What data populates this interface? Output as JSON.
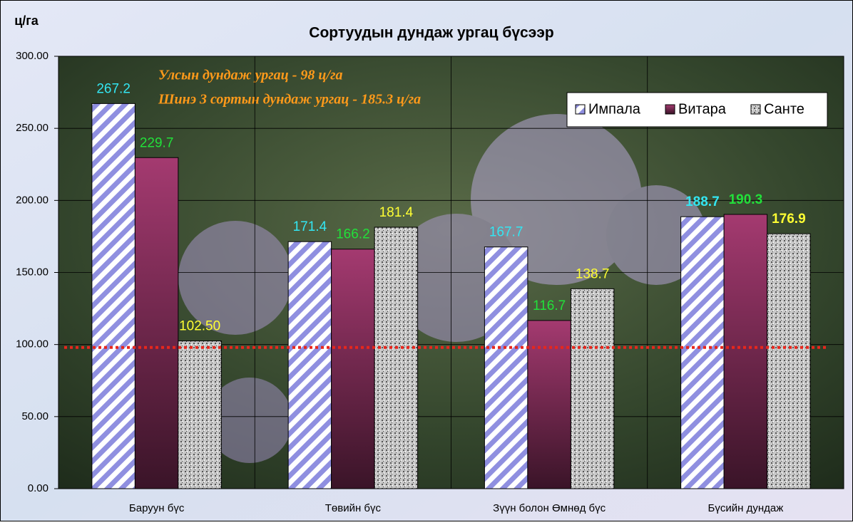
{
  "chart_data": {
    "type": "bar",
    "title": "Сортуудын дундаж ургац бүсээр",
    "y_label": "ц/га",
    "annotations": [
      "Улсын дундаж ургац - 98 ц/га",
      "Шинэ 3 сортын дундаж ургац - 185.3 ц/га"
    ],
    "reference_line": {
      "value": 98,
      "color": "#e8261c"
    },
    "categories": [
      "Баруун бүс",
      "Төвийн бүс",
      "Зүүн болон Өмнөд бүс",
      "Бүсийн дундаж"
    ],
    "series": [
      {
        "name": "Импала",
        "color": "#8f8fe0",
        "label_color": "#33e6f2",
        "values": [
          267.2,
          171.4,
          167.7,
          188.7
        ]
      },
      {
        "name": "Витара",
        "color": "#8b2f5e",
        "label_color": "#22e03a",
        "values": [
          229.7,
          166.2,
          116.7,
          190.3
        ]
      },
      {
        "name": "Санте",
        "color": "#b0b0b0",
        "label_color": "#ffff33",
        "values": [
          102.5,
          181.4,
          138.7,
          176.9
        ],
        "value_labels": [
          "102.50",
          "181.4",
          "138.7",
          "176.9"
        ]
      }
    ],
    "ylim": [
      0,
      300
    ],
    "yticks": [
      {
        "value": 0,
        "label": "0.00"
      },
      {
        "value": 50,
        "label": "50.00"
      },
      {
        "value": 100,
        "label": "100.00"
      },
      {
        "value": 150,
        "label": "150.00"
      },
      {
        "value": 200,
        "label": "200.00"
      },
      {
        "value": 250,
        "label": "250.00"
      },
      {
        "value": 300,
        "label": "300.00"
      }
    ],
    "grid": true,
    "legend": "top-right"
  }
}
